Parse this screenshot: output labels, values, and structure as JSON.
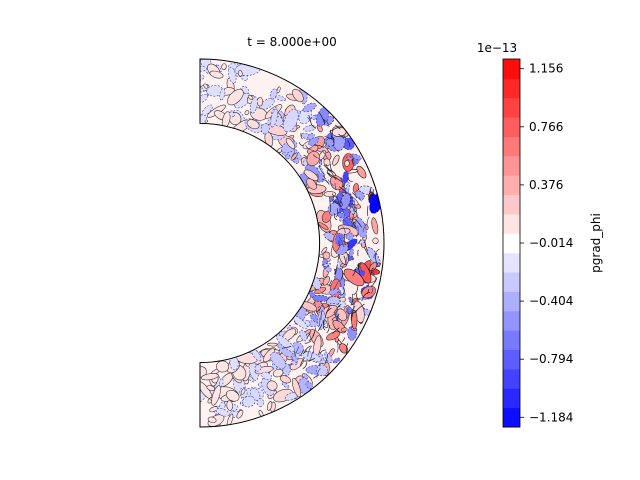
{
  "chart_data": {
    "type": "heatmap",
    "subtype": "meridional-shell-contour",
    "title": "t = 8.000e+00",
    "colorbar": {
      "label": "pgrad_phi",
      "exponent_label": "1e−13",
      "cmap": "bwr",
      "vmin": -1.249,
      "vmax": 1.221,
      "levels": 19,
      "ticks": [
        -1.184,
        -0.794,
        -0.404,
        -0.014,
        0.376,
        0.766,
        1.156
      ],
      "tick_labels": [
        "−1.184",
        "−0.794",
        "−0.404",
        "−0.014",
        "0.376",
        "0.766",
        "1.156"
      ]
    },
    "domain": {
      "shape": "half-annulus (spherical shell, meridional slice)",
      "radius_ratio": 0.65,
      "theta_range_deg": [
        0,
        180
      ]
    },
    "field_description": "Mostly near-zero values with small-scale contour cells; strongest positive and negative structures concentrated near the outer equatorial region"
  },
  "colors": {
    "negative_max": "#0000ff",
    "neutral": "#ffffff",
    "positive_max": "#ff0000",
    "outline": "#000000"
  }
}
